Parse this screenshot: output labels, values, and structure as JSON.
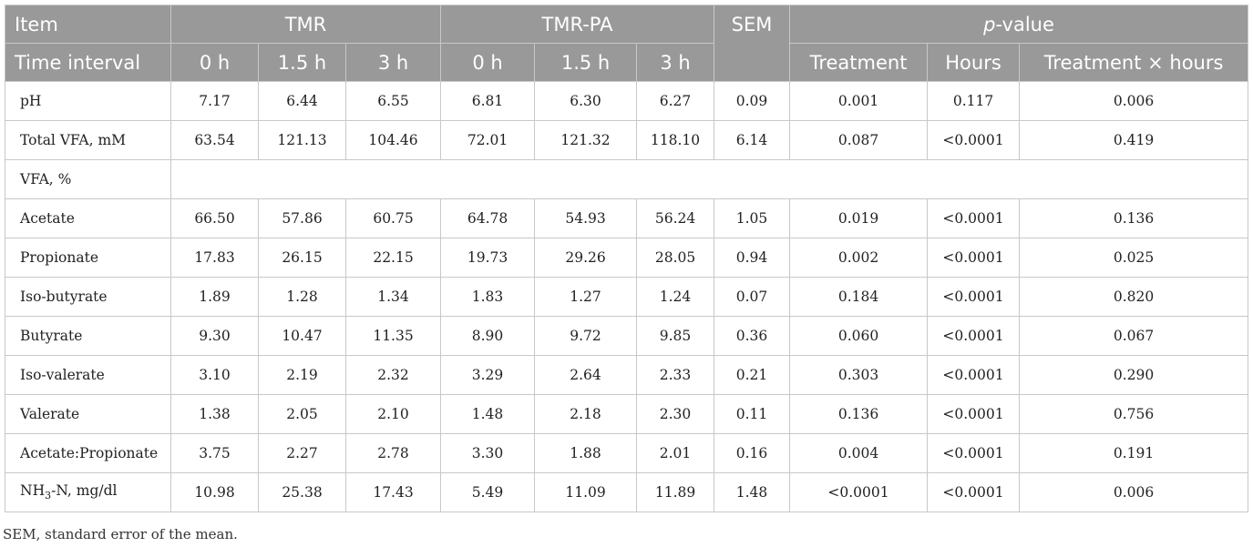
{
  "header": {
    "item": "Item",
    "time_interval": "Time interval",
    "group_tmr": "TMR",
    "group_tmr_pa": "TMR-PA",
    "sem": "SEM",
    "pvalue_italic": "p",
    "pvalue_rest": "-value",
    "times": [
      "0 h",
      "1.5 h",
      "3 h",
      "0 h",
      "1.5 h",
      "3 h"
    ],
    "p_cols": [
      "Treatment",
      "Hours",
      "Treatment × hours"
    ]
  },
  "rows": [
    {
      "label": "pH",
      "values": [
        "7.17",
        "6.44",
        "6.55",
        "6.81",
        "6.30",
        "6.27",
        "0.09",
        "0.001",
        "0.117",
        "0.006"
      ]
    },
    {
      "label": "Total VFA, mM",
      "values": [
        "63.54",
        "121.13",
        "104.46",
        "72.01",
        "121.32",
        "118.10",
        "6.14",
        "0.087",
        "<0.0001",
        "0.419"
      ]
    },
    {
      "label": "VFA, %",
      "values": []
    },
    {
      "label": "Acetate",
      "values": [
        "66.50",
        "57.86",
        "60.75",
        "64.78",
        "54.93",
        "56.24",
        "1.05",
        "0.019",
        "<0.0001",
        "0.136"
      ]
    },
    {
      "label": "Propionate",
      "values": [
        "17.83",
        "26.15",
        "22.15",
        "19.73",
        "29.26",
        "28.05",
        "0.94",
        "0.002",
        "<0.0001",
        "0.025"
      ]
    },
    {
      "label": "Iso-butyrate",
      "values": [
        "1.89",
        "1.28",
        "1.34",
        "1.83",
        "1.27",
        "1.24",
        "0.07",
        "0.184",
        "<0.0001",
        "0.820"
      ]
    },
    {
      "label": "Butyrate",
      "values": [
        "9.30",
        "10.47",
        "11.35",
        "8.90",
        "9.72",
        "9.85",
        "0.36",
        "0.060",
        "<0.0001",
        "0.067"
      ]
    },
    {
      "label": "Iso-valerate",
      "values": [
        "3.10",
        "2.19",
        "2.32",
        "3.29",
        "2.64",
        "2.33",
        "0.21",
        "0.303",
        "<0.0001",
        "0.290"
      ]
    },
    {
      "label": "Valerate",
      "values": [
        "1.38",
        "2.05",
        "2.10",
        "1.48",
        "2.18",
        "2.30",
        "0.11",
        "0.136",
        "<0.0001",
        "0.756"
      ]
    },
    {
      "label": "Acetate:Propionate",
      "values": [
        "3.75",
        "2.27",
        "2.78",
        "3.30",
        "1.88",
        "2.01",
        "0.16",
        "0.004",
        "<0.0001",
        "0.191"
      ]
    },
    {
      "label": "NH",
      "sub": "3",
      "suffix": "-N, mg/dl",
      "values": [
        "10.98",
        "25.38",
        "17.43",
        "5.49",
        "11.09",
        "11.89",
        "1.48",
        "<0.0001",
        "<0.0001",
        "0.006"
      ]
    }
  ],
  "footnote": "SEM, standard error of the mean."
}
